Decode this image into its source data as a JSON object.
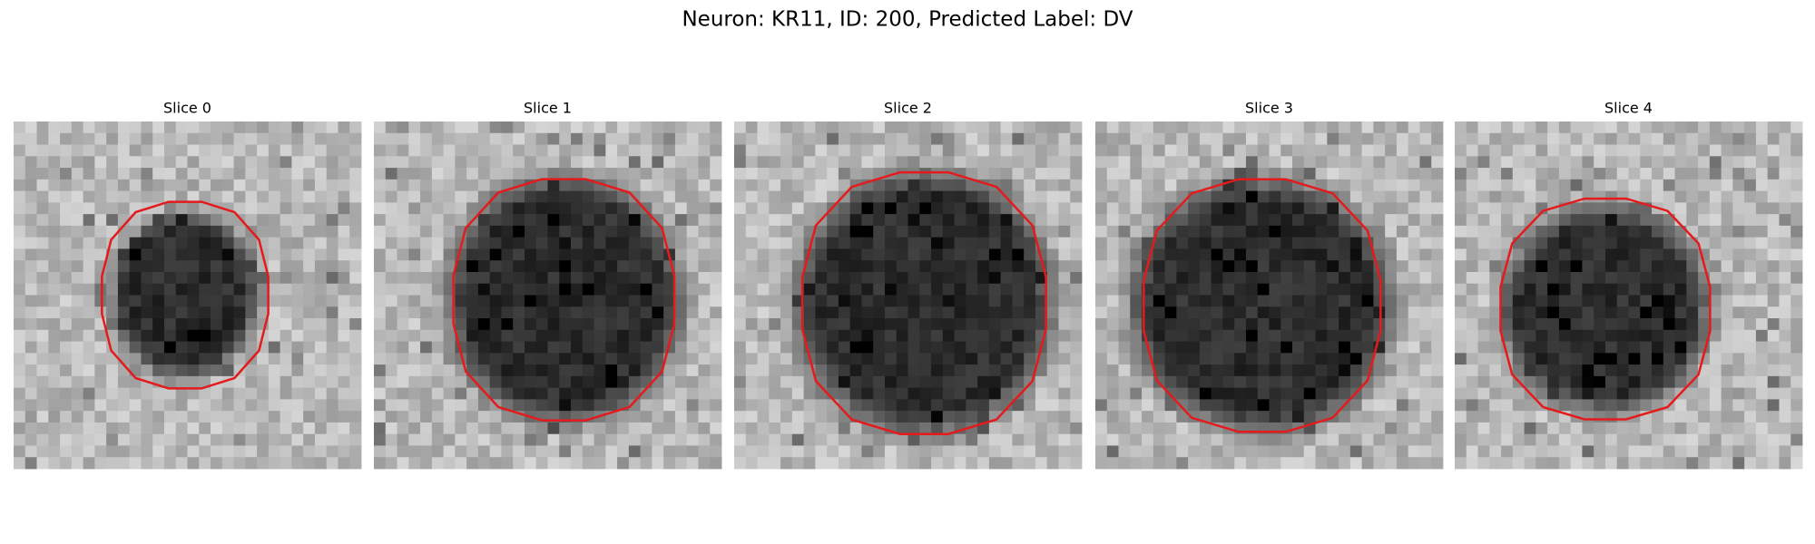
{
  "title": "Neuron: KR11, ID: 200, Predicted Label: DV",
  "panels": [
    {
      "title": "Slice 0"
    },
    {
      "title": "Slice 1"
    },
    {
      "title": "Slice 2"
    },
    {
      "title": "Slice 3"
    },
    {
      "title": "Slice 4"
    }
  ]
}
